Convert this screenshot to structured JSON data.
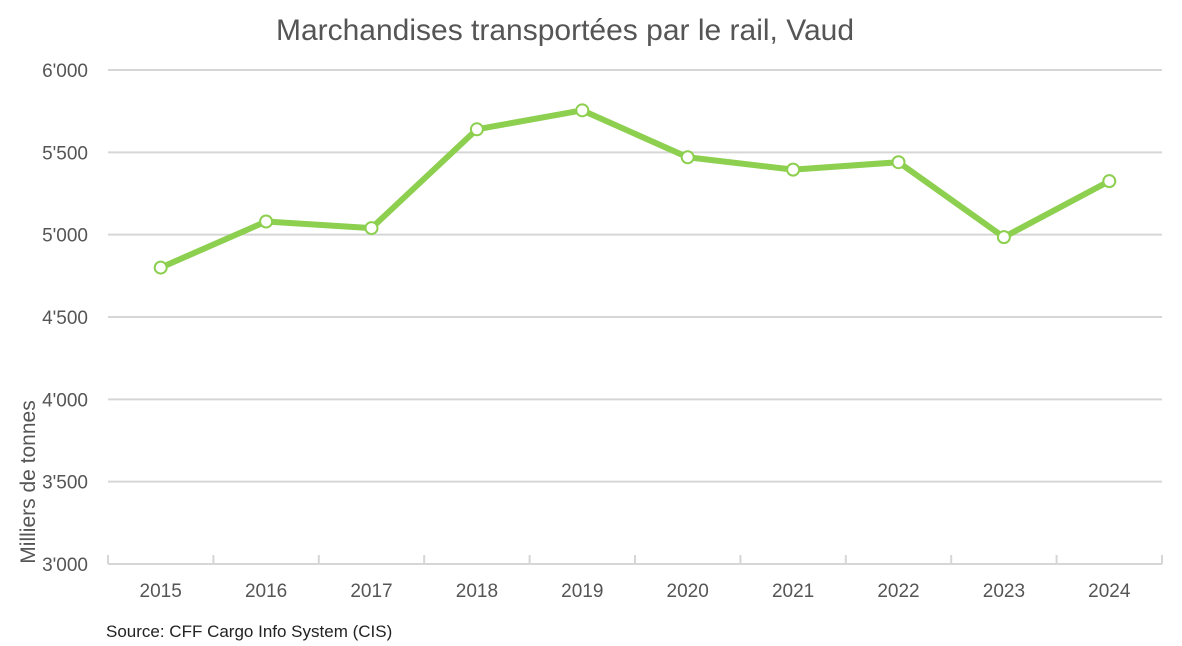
{
  "chart_data": {
    "type": "line",
    "title": "Marchandises transportées par le rail, Vaud",
    "xlabel": "",
    "ylabel": "Milliers de tonnes",
    "categories": [
      "2015",
      "2016",
      "2017",
      "2018",
      "2019",
      "2020",
      "2021",
      "2022",
      "2023",
      "2024"
    ],
    "series": [
      {
        "name": "Marchandises transportées",
        "values": [
          4800,
          5080,
          5040,
          5640,
          5755,
          5470,
          5395,
          5440,
          4985,
          5325
        ]
      }
    ],
    "ylim": [
      3000,
      6000
    ],
    "yticks": [
      3000,
      3500,
      4000,
      4500,
      5000,
      5500,
      6000
    ],
    "ytick_labels": [
      "3'000",
      "3'500",
      "4'000",
      "4'500",
      "5'000",
      "5'500",
      "6'000"
    ],
    "grid": true,
    "legend": "none",
    "line_color": "#8dcf4f",
    "grid_color": "#d6d6d6"
  },
  "source": "Source: CFF Cargo Info System (CIS)"
}
